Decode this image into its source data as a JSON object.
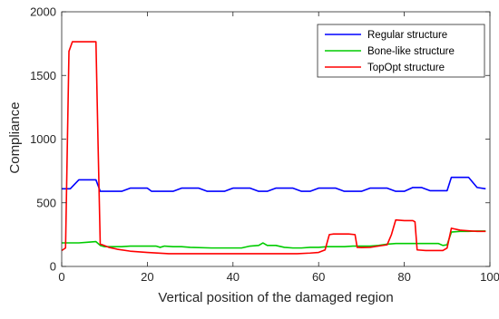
{
  "chart_data": {
    "type": "line",
    "xlabel": "Vertical position of the damaged region",
    "ylabel": "Compliance",
    "xlim": [
      0,
      100
    ],
    "ylim": [
      0,
      2000
    ],
    "xticks": [
      0,
      20,
      40,
      60,
      80,
      100
    ],
    "yticks": [
      0,
      500,
      1000,
      1500,
      2000
    ],
    "grid": false,
    "legend_position": "top-right",
    "series": [
      {
        "name": "Regular structure",
        "color": "#0000ff",
        "x": [
          0,
          2,
          4,
          6,
          8,
          9,
          10,
          12,
          14,
          16,
          18,
          20,
          21,
          23,
          26,
          28,
          30,
          32,
          34,
          36,
          38,
          40,
          42,
          44,
          46,
          48,
          50,
          52,
          54,
          56,
          58,
          60,
          62,
          64,
          66,
          68,
          70,
          72,
          74,
          76,
          78,
          80,
          82,
          84,
          86,
          88,
          90,
          91,
          93,
          95,
          97,
          99
        ],
        "y": [
          610,
          610,
          680,
          680,
          680,
          590,
          590,
          590,
          590,
          615,
          615,
          615,
          590,
          590,
          590,
          615,
          615,
          615,
          590,
          590,
          590,
          615,
          615,
          615,
          590,
          590,
          615,
          615,
          615,
          590,
          590,
          615,
          615,
          615,
          590,
          590,
          590,
          615,
          615,
          615,
          590,
          590,
          620,
          620,
          595,
          595,
          595,
          700,
          700,
          700,
          620,
          610
        ]
      },
      {
        "name": "Bone-like structure",
        "color": "#00cc00",
        "x": [
          0,
          2,
          4,
          6,
          8,
          9,
          10,
          12,
          14,
          16,
          18,
          20,
          22,
          23,
          24,
          26,
          28,
          30,
          35,
          40,
          42,
          44,
          46,
          47,
          48,
          50,
          52,
          54,
          56,
          58,
          60,
          62,
          64,
          66,
          68,
          70,
          72,
          74,
          76,
          78,
          80,
          82,
          84,
          86,
          88,
          89,
          90,
          91,
          93,
          95,
          97,
          99
        ],
        "y": [
          185,
          185,
          185,
          190,
          195,
          165,
          155,
          155,
          155,
          160,
          160,
          160,
          160,
          150,
          160,
          155,
          155,
          150,
          145,
          145,
          145,
          160,
          165,
          185,
          165,
          165,
          150,
          145,
          145,
          150,
          150,
          155,
          155,
          155,
          160,
          160,
          160,
          165,
          175,
          180,
          180,
          180,
          180,
          180,
          180,
          165,
          170,
          270,
          275,
          275,
          278,
          278
        ]
      },
      {
        "name": "TopOpt structure",
        "color": "#ff0000",
        "x": [
          0,
          0.9,
          1.7,
          2.5,
          4,
          6,
          7,
          8,
          8.5,
          9,
          9.5,
          11,
          13,
          16,
          20,
          25,
          30,
          35,
          40,
          45,
          50,
          55,
          58,
          60,
          61.5,
          62.5,
          63.5,
          65,
          67,
          68.5,
          69,
          70,
          72,
          74,
          76,
          77,
          78,
          80,
          82,
          82.5,
          83,
          85,
          87,
          89,
          90,
          91,
          93,
          95,
          97,
          99
        ],
        "y": [
          125,
          145,
          1690,
          1765,
          1765,
          1765,
          1765,
          1765,
          950,
          175,
          170,
          150,
          135,
          120,
          110,
          100,
          100,
          100,
          100,
          100,
          100,
          100,
          105,
          110,
          130,
          250,
          255,
          255,
          255,
          250,
          150,
          148,
          150,
          160,
          170,
          250,
          365,
          360,
          360,
          350,
          130,
          125,
          125,
          125,
          145,
          300,
          285,
          280,
          275,
          275
        ]
      }
    ]
  }
}
